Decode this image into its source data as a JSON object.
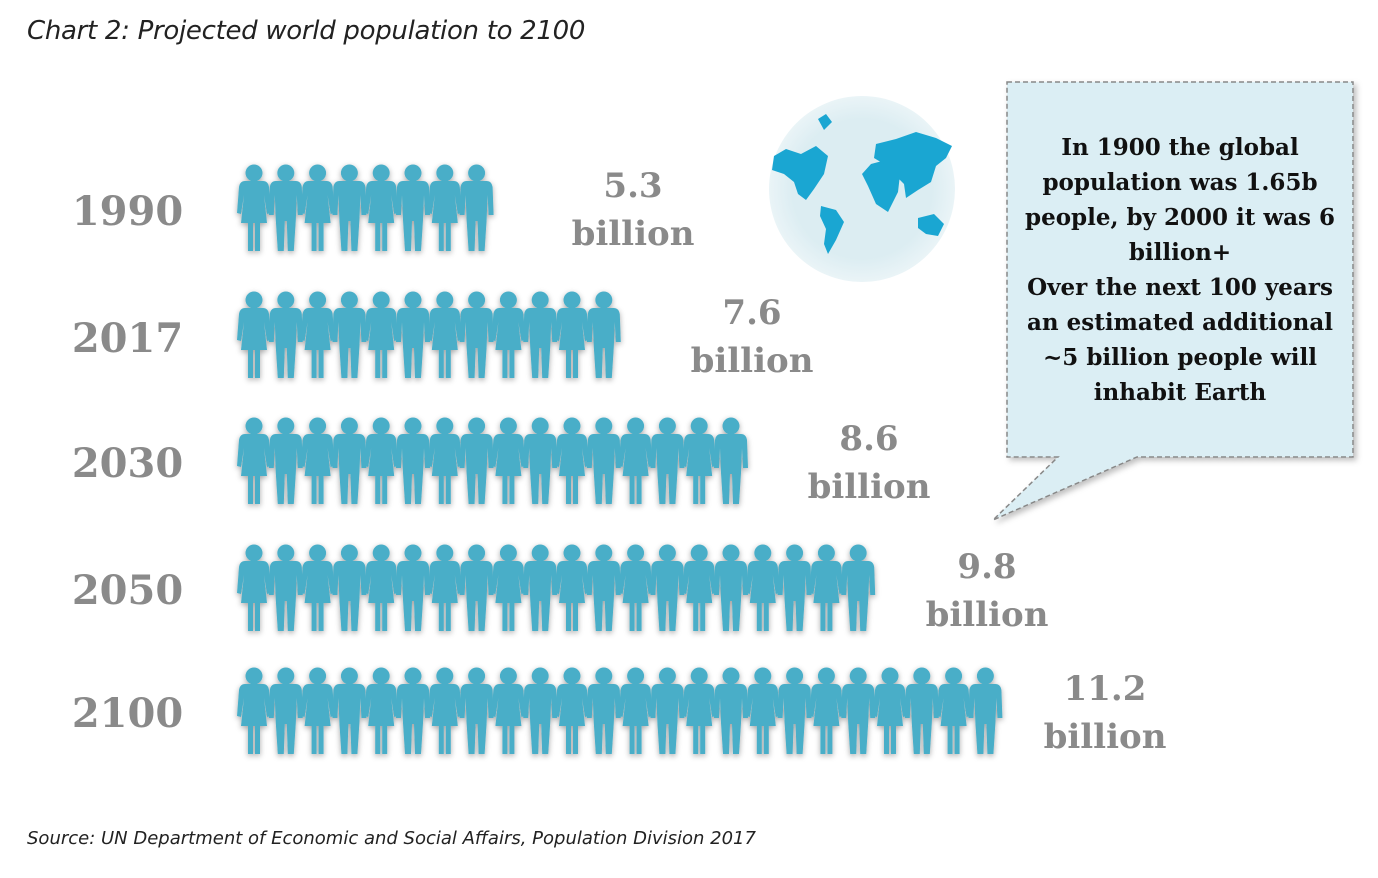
{
  "title": "Chart 2: Projected world population to 2100",
  "source": "Source: UN Department of Economic and Social Affairs, Population Division 2017",
  "chart_data": {
    "type": "pictograph",
    "title": "Chart 2: Projected world population to 2100",
    "categories": [
      "1990",
      "2017",
      "2030",
      "2050",
      "2100"
    ],
    "values": [
      5.3,
      7.6,
      8.6,
      9.8,
      11.2
    ],
    "unit": "billion",
    "value_labels": [
      {
        "number": "5.3",
        "unit": "billion"
      },
      {
        "number": "7.6",
        "unit": "billion"
      },
      {
        "number": "8.6",
        "unit": "billion"
      },
      {
        "number": "9.8",
        "unit": "billion"
      },
      {
        "number": "11.2",
        "unit": "billion"
      }
    ],
    "icon_counts": [
      8,
      12,
      16,
      20,
      24
    ],
    "icon": "person-icon (alternating female/male)",
    "colors": {
      "people": "#4aaec8",
      "globe_bg": "#dcedf2",
      "callout_bg": "#dbeef4",
      "labels": "#8a8a8a"
    },
    "annotation": {
      "lines": [
        "In 1900 the global",
        "population was 1.65b",
        "people, by 2000 it was 6",
        "billion+",
        "Over the next 100 years",
        "an estimated additional",
        "~5 billion people will",
        "inhabit Earth"
      ]
    }
  }
}
